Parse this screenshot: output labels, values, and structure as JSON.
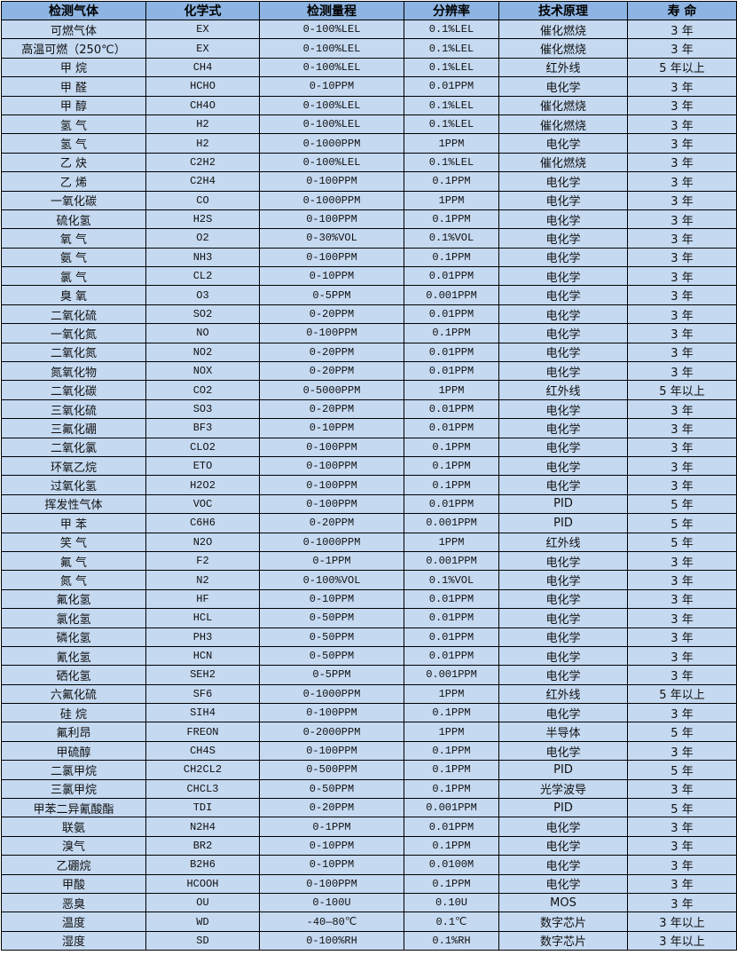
{
  "colors": {
    "header_bg": "#8db4e2",
    "row_bg": "#c5d9f1"
  },
  "table": {
    "headers": [
      "检测气体",
      "化学式",
      "检测量程",
      "分辨率",
      "技术原理",
      "寿 命"
    ],
    "rows": [
      [
        "可燃气体",
        "EX",
        "0-100%LEL",
        "0.1%LEL",
        "催化燃烧",
        "3 年"
      ],
      [
        "高温可燃（250℃）",
        "EX",
        "0-100%LEL",
        "0.1%LEL",
        "催化燃烧",
        "3 年"
      ],
      [
        "甲 烷",
        "CH4",
        "0-100%LEL",
        "0.1%LEL",
        "红外线",
        "5 年以上"
      ],
      [
        "甲 醛",
        "HCHO",
        "0-10PPM",
        "0.01PPM",
        "电化学",
        "3 年"
      ],
      [
        "甲 醇",
        "CH4O",
        "0-100%LEL",
        "0.1%LEL",
        "催化燃烧",
        "3 年"
      ],
      [
        "氢 气",
        "H2",
        "0-100%LEL",
        "0.1%LEL",
        "催化燃烧",
        "3 年"
      ],
      [
        "氢 气",
        "H2",
        "0-1000PPM",
        "1PPM",
        "电化学",
        "3 年"
      ],
      [
        "乙 炔",
        "C2H2",
        "0-100%LEL",
        "0.1%LEL",
        "催化燃烧",
        "3 年"
      ],
      [
        "乙 烯",
        "C2H4",
        "0-100PPM",
        "0.1PPM",
        "电化学",
        "3 年"
      ],
      [
        "一氧化碳",
        "CO",
        "0-1000PPM",
        "1PPM",
        "电化学",
        "3 年"
      ],
      [
        "硫化氢",
        "H2S",
        "0-100PPM",
        "0.1PPM",
        "电化学",
        "3 年"
      ],
      [
        "氧 气",
        "O2",
        "0-30%VOL",
        "0.1%VOL",
        "电化学",
        "3 年"
      ],
      [
        "氨 气",
        "NH3",
        "0-100PPM",
        "0.1PPM",
        "电化学",
        "3 年"
      ],
      [
        "氯 气",
        "CL2",
        "0-10PPM",
        "0.01PPM",
        "电化学",
        "3 年"
      ],
      [
        "臭 氧",
        "O3",
        "0-5PPM",
        "0.001PPM",
        "电化学",
        "3 年"
      ],
      [
        "二氧化硫",
        "SO2",
        "0-20PPM",
        "0.01PPM",
        "电化学",
        "3 年"
      ],
      [
        "一氧化氮",
        "NO",
        "0-100PPM",
        "0.1PPM",
        "电化学",
        "3 年"
      ],
      [
        "二氧化氮",
        "NO2",
        "0-20PPM",
        "0.01PPM",
        "电化学",
        "3 年"
      ],
      [
        "氮氧化物",
        "NOX",
        "0-20PPM",
        "0.01PPM",
        "电化学",
        "3 年"
      ],
      [
        "二氧化碳",
        "CO2",
        "0-5000PPM",
        "1PPM",
        "红外线",
        "5 年以上"
      ],
      [
        "三氧化硫",
        "SO3",
        "0-20PPM",
        "0.01PPM",
        "电化学",
        "3 年"
      ],
      [
        "三氟化硼",
        "BF3",
        "0-10PPM",
        "0.01PPM",
        "电化学",
        "3 年"
      ],
      [
        "二氧化氯",
        "CLO2",
        "0-100PPM",
        "0.1PPM",
        "电化学",
        "3 年"
      ],
      [
        "环氧乙烷",
        "ETO",
        "0-100PPM",
        "0.1PPM",
        "电化学",
        "3 年"
      ],
      [
        "过氧化氢",
        "H2O2",
        "0-100PPM",
        "0.1PPM",
        "电化学",
        "3 年"
      ],
      [
        "挥发性气体",
        "VOC",
        "0-100PPM",
        "0.01PPM",
        "PID",
        "5 年"
      ],
      [
        "甲 苯",
        "C6H6",
        "0-20PPM",
        "0.001PPM",
        "PID",
        "5 年"
      ],
      [
        "笑 气",
        "N2O",
        "0-1000PPM",
        "1PPM",
        "红外线",
        "5 年"
      ],
      [
        "氟 气",
        "F2",
        "0-1PPM",
        "0.001PPM",
        "电化学",
        "3 年"
      ],
      [
        "氮 气",
        "N2",
        "0-100%VOL",
        "0.1%VOL",
        "电化学",
        "3 年"
      ],
      [
        "氟化氢",
        "HF",
        "0-10PPM",
        "0.01PPM",
        "电化学",
        "3 年"
      ],
      [
        "氯化氢",
        "HCL",
        "0-50PPM",
        "0.01PPM",
        "电化学",
        "3 年"
      ],
      [
        "磷化氢",
        "PH3",
        "0-50PPM",
        "0.01PPM",
        "电化学",
        "3 年"
      ],
      [
        "氰化氢",
        "HCN",
        "0-50PPM",
        "0.01PPM",
        "电化学",
        "3 年"
      ],
      [
        "硒化氢",
        "SEH2",
        "0-5PPM",
        "0.001PPM",
        "电化学",
        "3 年"
      ],
      [
        "六氟化硫",
        "SF6",
        "0-1000PPM",
        "1PPM",
        "红外线",
        "5 年以上"
      ],
      [
        "硅 烷",
        "SIH4",
        "0-100PPM",
        "0.1PPM",
        "电化学",
        "3 年"
      ],
      [
        "氟利昂",
        "FREON",
        "0-2000PPM",
        "1PPM",
        "半导体",
        "5 年"
      ],
      [
        "甲硫醇",
        "CH4S",
        "0-100PPM",
        "0.1PPM",
        "电化学",
        "3 年"
      ],
      [
        "二氯甲烷",
        "CH2CL2",
        "0-500PPM",
        "0.1PPM",
        "PID",
        "5 年"
      ],
      [
        "三氯甲烷",
        "CHCL3",
        "0-50PPM",
        "0.1PPM",
        "光学波导",
        "3 年"
      ],
      [
        "甲苯二异氰酸酯",
        "TDI",
        "0-20PPM",
        "0.001PPM",
        "PID",
        "5 年"
      ],
      [
        "联氨",
        "N2H4",
        "0-1PPM",
        "0.01PPM",
        "电化学",
        "3 年"
      ],
      [
        "溴气",
        "BR2",
        "0-10PPM",
        "0.1PPM",
        "电化学",
        "3 年"
      ],
      [
        "乙硼烷",
        "B2H6",
        "0-10PPM",
        "0.0100M",
        "电化学",
        "3 年"
      ],
      [
        "甲酸",
        "HCOOH",
        "0-100PPM",
        "0.1PPM",
        "电化学",
        "3 年"
      ],
      [
        "恶臭",
        "OU",
        "0-100U",
        "0.10U",
        "MOS",
        "3 年"
      ],
      [
        "温度",
        "WD",
        "-40—80℃",
        "0.1℃",
        "数字芯片",
        "3 年以上"
      ],
      [
        "湿度",
        "SD",
        "0-100%RH",
        "0.1%RH",
        "数字芯片",
        "3 年以上"
      ]
    ]
  }
}
